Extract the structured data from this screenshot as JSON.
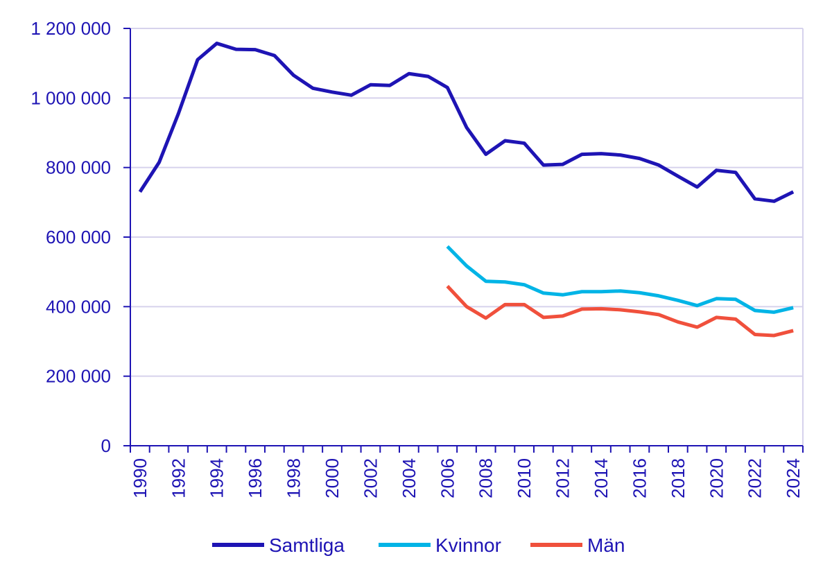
{
  "chart_data": {
    "type": "line",
    "title": "",
    "xlabel": "",
    "ylabel": "",
    "x": [
      1990,
      1991,
      1992,
      1993,
      1994,
      1995,
      1996,
      1997,
      1998,
      1999,
      2000,
      2001,
      2002,
      2003,
      2004,
      2005,
      2006,
      2007,
      2008,
      2009,
      2010,
      2011,
      2012,
      2013,
      2014,
      2015,
      2016,
      2017,
      2018,
      2019,
      2020,
      2021,
      2022,
      2023,
      2024
    ],
    "xticks": [
      1990,
      1992,
      1994,
      1996,
      1998,
      2000,
      2002,
      2004,
      2006,
      2008,
      2010,
      2012,
      2014,
      2016,
      2018,
      2020,
      2022,
      2024
    ],
    "yticks": [
      0,
      200000,
      400000,
      600000,
      800000,
      1000000,
      1200000
    ],
    "ytick_labels": [
      "0",
      "200 000",
      "400 000",
      "600 000",
      "800 000",
      "1 000 000",
      "1 200 000"
    ],
    "ylim": [
      0,
      1200000
    ],
    "xlim": [
      1989.5,
      2024.5
    ],
    "grid": "horizontal",
    "legend_position": "bottom",
    "colors": {
      "axis": "#1e14b4",
      "grid": "#d6d2ec",
      "text": "#1e14b4"
    },
    "series": [
      {
        "name": "Samtliga",
        "color": "#1e14b4",
        "values": [
          730000,
          815000,
          955000,
          1110000,
          1157000,
          1140000,
          1139000,
          1122000,
          1065000,
          1028000,
          1017000,
          1008000,
          1038000,
          1036000,
          1070000,
          1062000,
          1030000,
          915000,
          838000,
          877000,
          870000,
          807000,
          809000,
          838000,
          840000,
          836000,
          826000,
          807000,
          775000,
          744000,
          792000,
          786000,
          710000,
          703000,
          730000
        ]
      },
      {
        "name": "Kvinnor",
        "color": "#00b4e6",
        "values": [
          null,
          null,
          null,
          null,
          null,
          null,
          null,
          null,
          null,
          null,
          null,
          null,
          null,
          null,
          null,
          null,
          573000,
          517000,
          473000,
          471000,
          463000,
          439000,
          434000,
          443000,
          443000,
          445000,
          440000,
          431000,
          418000,
          403000,
          423000,
          421000,
          389000,
          384000,
          397000
        ]
      },
      {
        "name": "Män",
        "color": "#f0503c",
        "values": [
          null,
          null,
          null,
          null,
          null,
          null,
          null,
          null,
          null,
          null,
          null,
          null,
          null,
          null,
          null,
          null,
          459000,
          400000,
          367000,
          406000,
          406000,
          369000,
          373000,
          393000,
          394000,
          391000,
          385000,
          377000,
          356000,
          341000,
          369000,
          364000,
          320000,
          317000,
          331000
        ]
      }
    ]
  }
}
